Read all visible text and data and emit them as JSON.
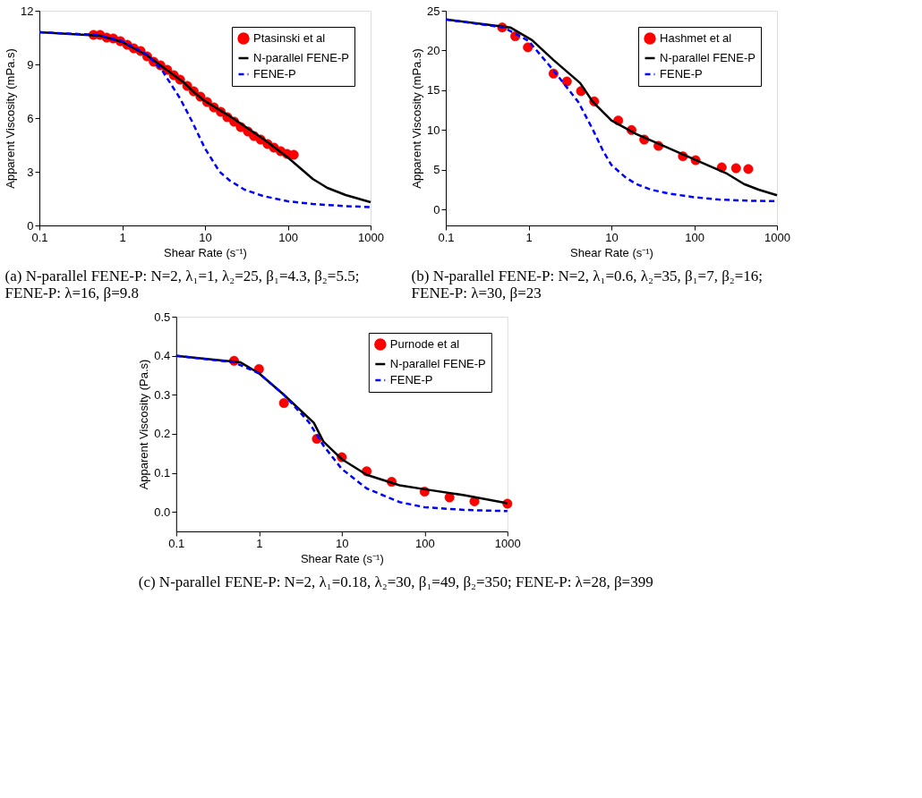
{
  "chart_data": [
    {
      "type": "line",
      "xlabel": "Shear Rate (s⁻¹)",
      "ylabel": "Apparent Viscosity (mPa.s)",
      "log": "x",
      "xlim": [
        0.1,
        1000
      ],
      "xticks": [
        0.1,
        1,
        10,
        100,
        1000
      ],
      "ylim": [
        0,
        12
      ],
      "yticks": [
        0,
        3,
        6,
        9,
        12
      ],
      "grid": false,
      "legend": "top right",
      "annotations": [
        "(a) N-parallel FENE-P: N=2, λ₁=1, λ₂=25, β₁=4.3, β₂=5.5; FENE-P: λ=16, β=9.8"
      ],
      "series": [
        {
          "name": "Ptasinski et al",
          "type": "scatter",
          "marker": "circle",
          "color": "#ff0000",
          "x": [
            0.45,
            0.54,
            0.65,
            0.78,
            0.95,
            1.15,
            1.38,
            1.67,
            2.0,
            2.4,
            2.9,
            3.5,
            4.2,
            5.0,
            6.1,
            7.3,
            8.8,
            10.6,
            12.8,
            15.5,
            18.6,
            22.5,
            27,
            33,
            39,
            47,
            57,
            68,
            82,
            98,
            118
          ],
          "values": [
            10.65,
            10.65,
            10.5,
            10.45,
            10.3,
            10.1,
            9.9,
            9.75,
            9.45,
            9.15,
            8.95,
            8.7,
            8.4,
            8.15,
            7.8,
            7.5,
            7.2,
            6.9,
            6.6,
            6.35,
            6.05,
            5.8,
            5.5,
            5.25,
            5.0,
            4.8,
            4.55,
            4.35,
            4.15,
            4.0,
            3.95
          ]
        },
        {
          "name": "N-parallel FENE-P",
          "line_style": "solid",
          "color": "#000000",
          "x": [
            0.1,
            0.55,
            1,
            2,
            3,
            5.5,
            8,
            10,
            20,
            50,
            100,
            150,
            200,
            300,
            500,
            1000
          ],
          "values": [
            10.8,
            10.6,
            10.25,
            9.5,
            8.9,
            8.0,
            7.3,
            6.95,
            6.1,
            4.85,
            3.8,
            3.1,
            2.6,
            2.1,
            1.7,
            1.3
          ]
        },
        {
          "name": "FENE-P",
          "line_style": "dashed",
          "color": "#0000ff",
          "x": [
            0.1,
            0.5,
            1,
            2,
            3,
            5,
            7,
            10,
            15,
            20,
            30,
            50,
            100,
            200,
            500,
            1000
          ],
          "values": [
            10.8,
            10.65,
            10.3,
            9.55,
            8.7,
            7.1,
            5.8,
            4.3,
            3.0,
            2.5,
            2.0,
            1.65,
            1.35,
            1.2,
            1.08,
            1.02
          ]
        }
      ]
    },
    {
      "type": "line",
      "xlabel": "Shear Rate (s⁻¹)",
      "ylabel": "Apparent Viscosity (mPa.s)",
      "log": "x",
      "xlim": [
        0.1,
        1000
      ],
      "xticks": [
        0.1,
        1,
        10,
        100,
        1000
      ],
      "ylim": [
        -2,
        25
      ],
      "yticks": [
        0,
        5,
        10,
        15,
        20,
        25
      ],
      "grid": false,
      "legend": "top right",
      "annotations": [
        "(b) N-parallel FENE-P: N=2, λ₁=0.6, λ₂=35, β₁=7, β₂=16; FENE-P: λ=30, β=23"
      ],
      "series": [
        {
          "name": "Hashmet et al",
          "type": "scatter",
          "marker": "circle",
          "color": "#ff0000",
          "x": [
            0.48,
            0.69,
            0.98,
            2.0,
            2.9,
            4.3,
            6.2,
            12.1,
            17.5,
            24.9,
            37,
            73,
            104,
            215,
            320,
            450
          ],
          "values": [
            22.9,
            21.8,
            20.4,
            17.1,
            16.1,
            14.9,
            13.6,
            11.2,
            10.0,
            8.8,
            8.0,
            6.7,
            6.2,
            5.3,
            5.2,
            5.1
          ]
        },
        {
          "name": "N-parallel FENE-P",
          "line_style": "solid",
          "color": "#000000",
          "x": [
            0.1,
            0.6,
            1.1,
            2,
            4.2,
            6,
            10,
            20,
            50,
            100,
            250,
            400,
            600,
            1000
          ],
          "values": [
            23.9,
            22.9,
            21.3,
            18.8,
            15.9,
            13.5,
            11.2,
            9.5,
            7.7,
            6.3,
            4.5,
            3.2,
            2.5,
            1.8
          ]
        },
        {
          "name": "FENE-P",
          "line_style": "dashed",
          "color": "#0000ff",
          "x": [
            0.1,
            0.5,
            1,
            2,
            4,
            6,
            8,
            10,
            15,
            20,
            30,
            50,
            100,
            200,
            500,
            1000
          ],
          "values": [
            23.9,
            22.9,
            21.2,
            17.5,
            13.5,
            10,
            7.3,
            5.6,
            4,
            3.2,
            2.5,
            2,
            1.55,
            1.25,
            1.1,
            1.05
          ]
        }
      ]
    },
    {
      "type": "line",
      "xlabel": "Shear Rate (s⁻¹)",
      "ylabel": "Apparent Viscosity (Pa.s)",
      "log": "x",
      "xlim": [
        0.1,
        1000
      ],
      "xticks": [
        0.1,
        1,
        10,
        100,
        1000
      ],
      "ylim": [
        -0.05,
        0.5
      ],
      "yticks": [
        {
          "value": 0,
          "label": "0.0"
        },
        0.1,
        0.2,
        0.3,
        0.4,
        0.5
      ],
      "grid": false,
      "legend": "top right",
      "annotations": [
        "(c) N-parallel FENE-P: N=2, λ₁=0.18, λ₂=30, β₁=49, β₂=350; FENE-P: λ=28, β=399"
      ],
      "series": [
        {
          "name": "Purnode et al",
          "type": "scatter",
          "marker": "circle",
          "color": "#ff0000",
          "x": [
            0.5,
            1,
            2,
            5,
            10,
            20,
            40,
            100,
            200,
            400,
            1000
          ],
          "values": [
            0.387,
            0.366,
            0.279,
            0.187,
            0.14,
            0.104,
            0.077,
            0.052,
            0.037,
            0.027,
            0.021
          ]
        },
        {
          "name": "N-parallel FENE-P",
          "line_style": "solid",
          "color": "#000000",
          "x": [
            0.1,
            0.6,
            1,
            2,
            4.6,
            6,
            10,
            20,
            50,
            100,
            300,
            1000
          ],
          "values": [
            0.4,
            0.383,
            0.355,
            0.3,
            0.228,
            0.18,
            0.135,
            0.095,
            0.068,
            0.058,
            0.043,
            0.022
          ]
        },
        {
          "name": "FENE-P",
          "line_style": "dashed",
          "color": "#0000ff",
          "x": [
            0.1,
            0.5,
            1,
            2,
            4,
            6,
            10,
            20,
            50,
            100,
            300,
            1000
          ],
          "values": [
            0.4,
            0.383,
            0.355,
            0.3,
            0.23,
            0.17,
            0.11,
            0.06,
            0.025,
            0.012,
            0.005,
            0.002
          ]
        }
      ]
    }
  ]
}
